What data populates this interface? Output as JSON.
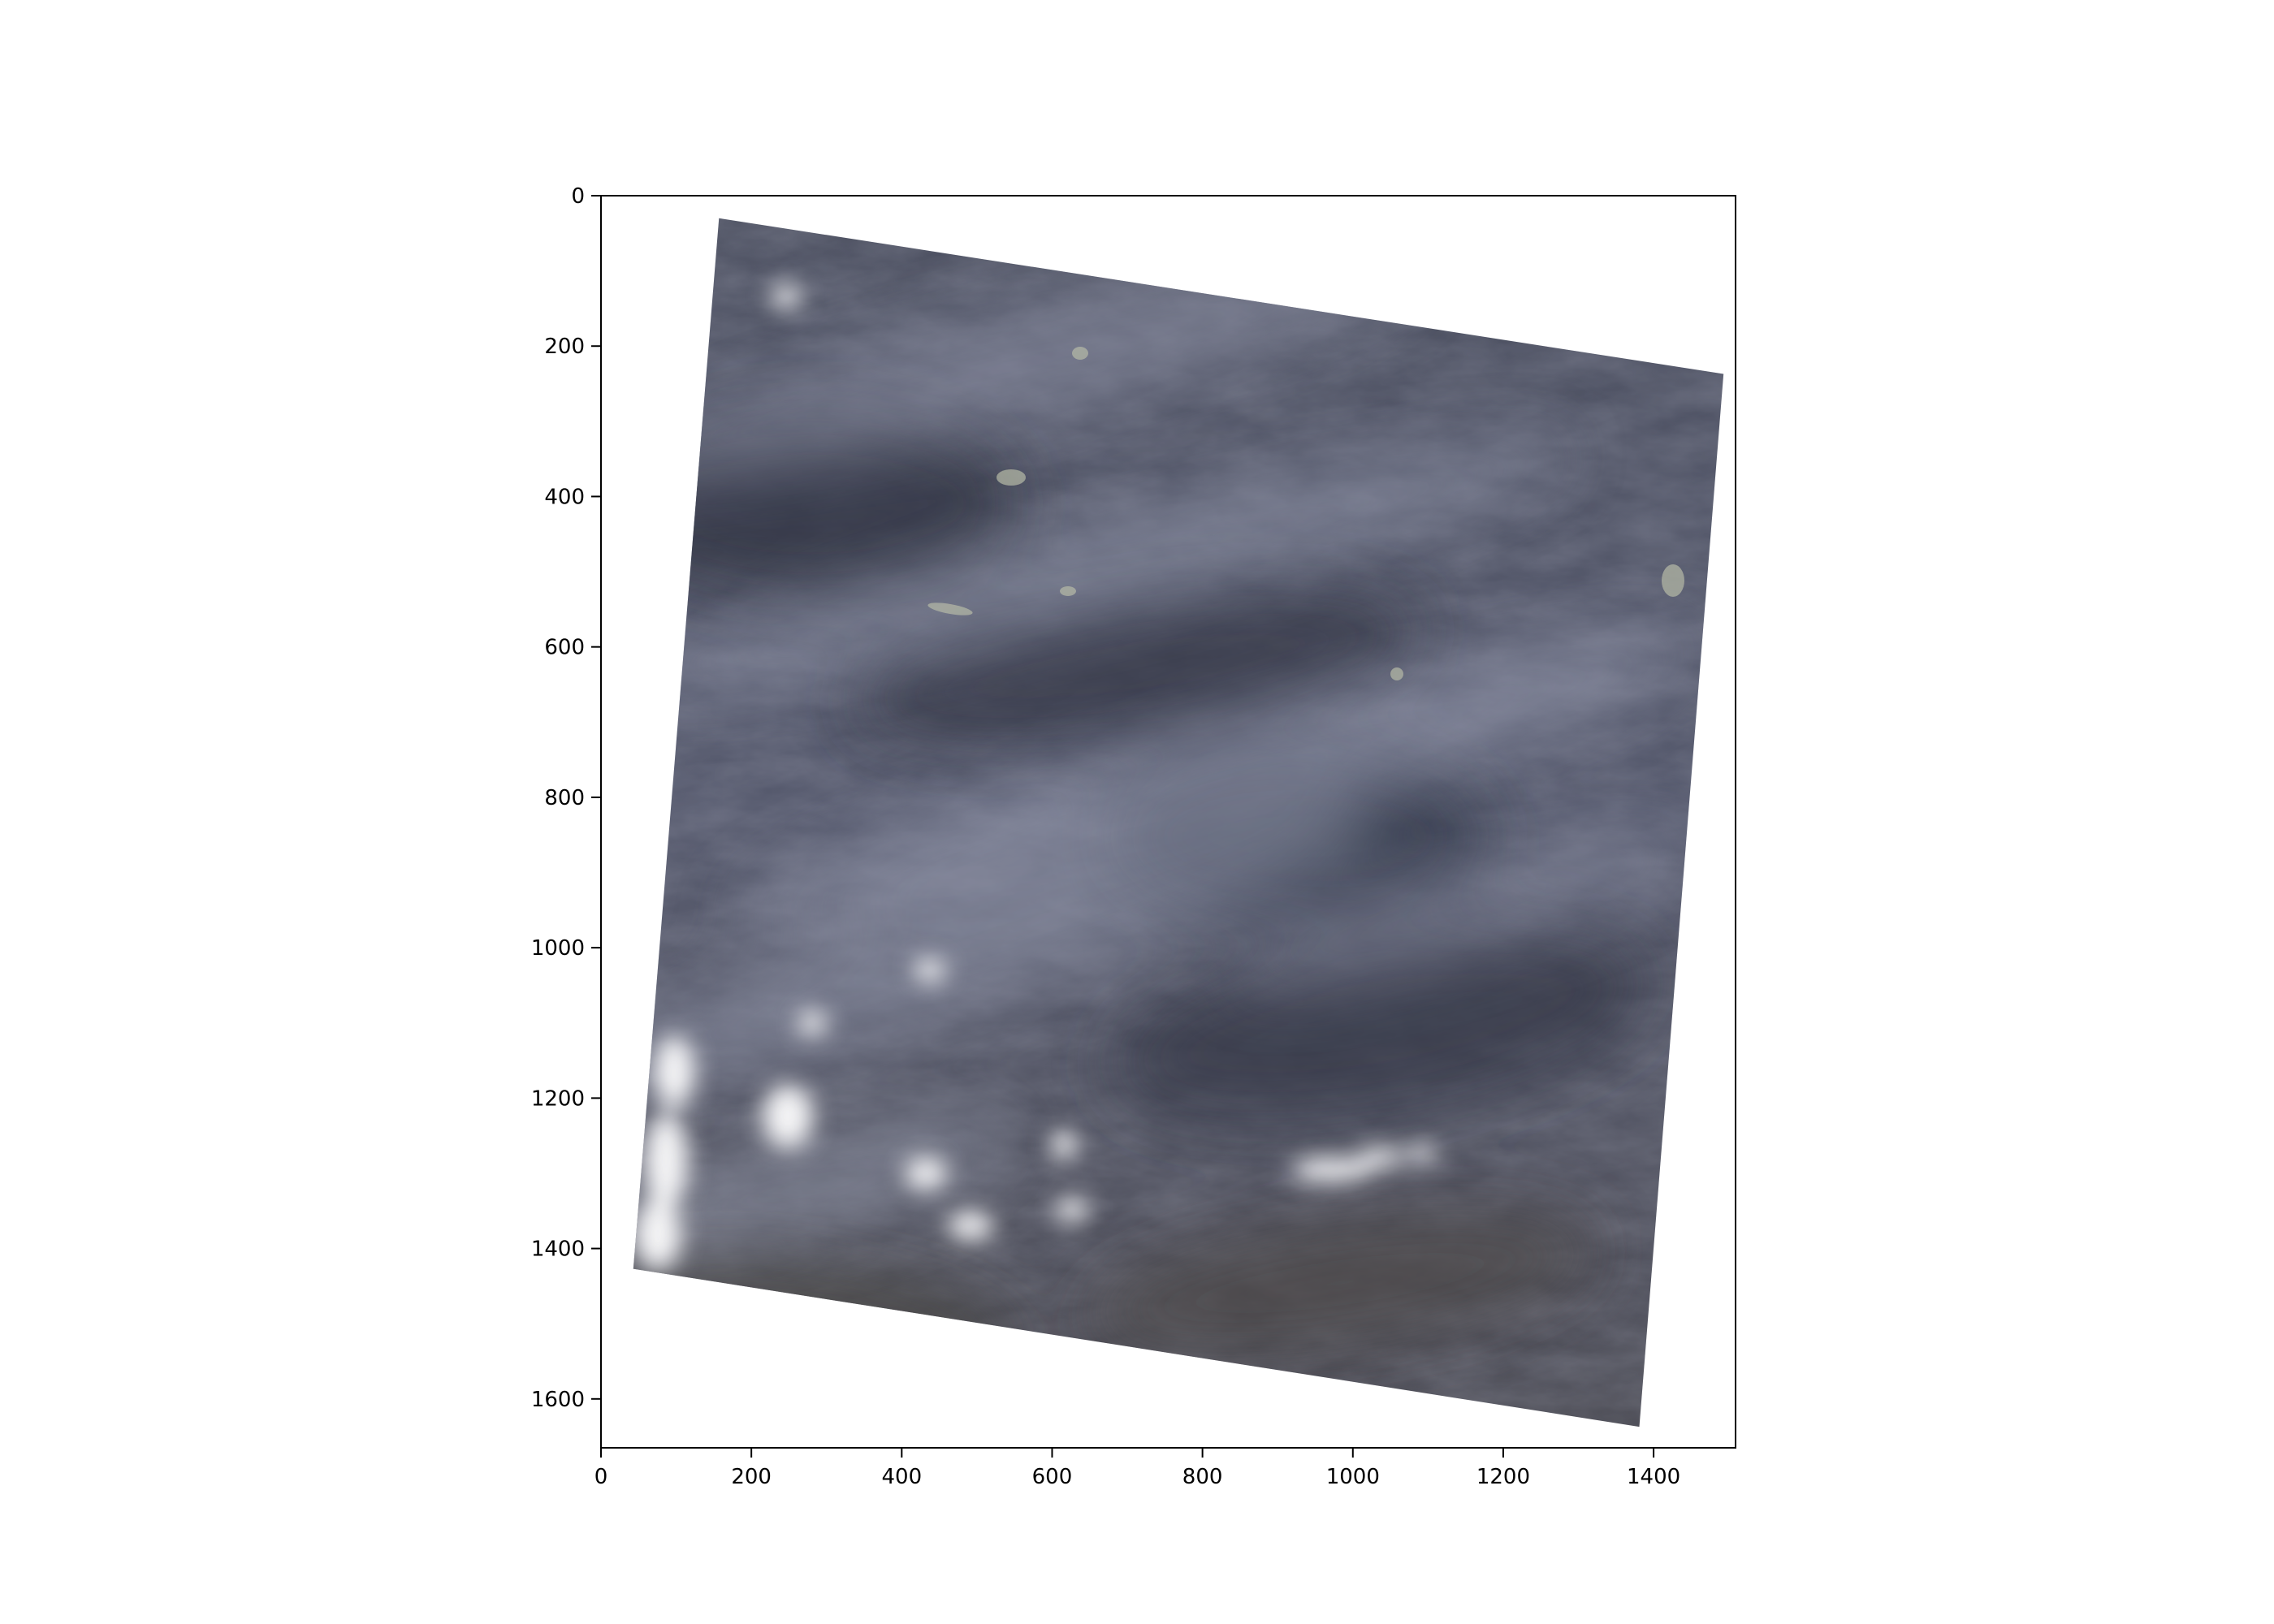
{
  "figure": {
    "image_description_free": true,
    "x_axis": {
      "range": [
        0,
        1509
      ],
      "ticks": [
        {
          "value": 0,
          "label": "0"
        },
        {
          "value": 200,
          "label": "200"
        },
        {
          "value": 400,
          "label": "400"
        },
        {
          "value": 600,
          "label": "600"
        },
        {
          "value": 800,
          "label": "800"
        },
        {
          "value": 1000,
          "label": "1000"
        },
        {
          "value": 1200,
          "label": "1200"
        },
        {
          "value": 1400,
          "label": "1400"
        }
      ]
    },
    "y_axis": {
      "range": [
        0,
        1665
      ],
      "inverted": true,
      "ticks": [
        {
          "value": 0,
          "label": "0"
        },
        {
          "value": 200,
          "label": "200"
        },
        {
          "value": 400,
          "label": "400"
        },
        {
          "value": 600,
          "label": "600"
        },
        {
          "value": 800,
          "label": "800"
        },
        {
          "value": 1000,
          "label": "1000"
        },
        {
          "value": 1200,
          "label": "1200"
        },
        {
          "value": 1400,
          "label": "1400"
        },
        {
          "value": 1600,
          "label": "1600"
        }
      ]
    },
    "scene_corners_data_units": [
      [
        157,
        30
      ],
      [
        1493,
        237
      ],
      [
        1381,
        1637
      ],
      [
        43,
        1427
      ]
    ],
    "colors": {
      "terrain_dark": "#3b3f4f",
      "terrain_mid": "#585c6c",
      "haze": "#9ea2b4",
      "cloud": "#f2f2f4",
      "axes": "#000000"
    }
  }
}
